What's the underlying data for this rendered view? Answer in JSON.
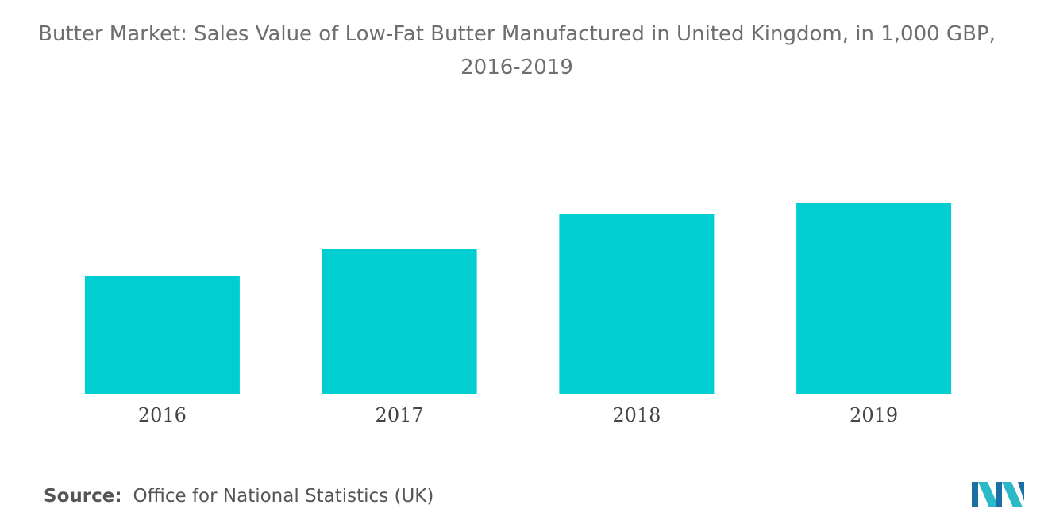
{
  "title": {
    "line1": "Butter Market: Sales Value of Low-Fat Butter Manufactured in United Kingdom, in 1,000 GBP,",
    "line2": "2016-2019"
  },
  "source": {
    "label": "Source:",
    "text": "Office for National Statistics (UK)"
  },
  "logo": {
    "icon": "mordor-intelligence-logo-icon",
    "colors": [
      "#1b6fa3",
      "#29b9c7"
    ]
  },
  "colors": {
    "bar": "#00ced1",
    "title": "#6e6e6e",
    "tick_label": "#444444"
  },
  "chart_data": {
    "type": "bar",
    "title": "Butter Market: Sales Value of Low-Fat Butter Manufactured in United Kingdom, in 1,000 GBP, 2016-2019",
    "categories": [
      "2016",
      "2017",
      "2018",
      "2019"
    ],
    "values": [
      149,
      182,
      227,
      240
    ],
    "ylim": [
      0,
      260
    ],
    "xlabel": "",
    "ylabel": "",
    "grid": false,
    "legend": "none",
    "y_axis_shown": false
  }
}
